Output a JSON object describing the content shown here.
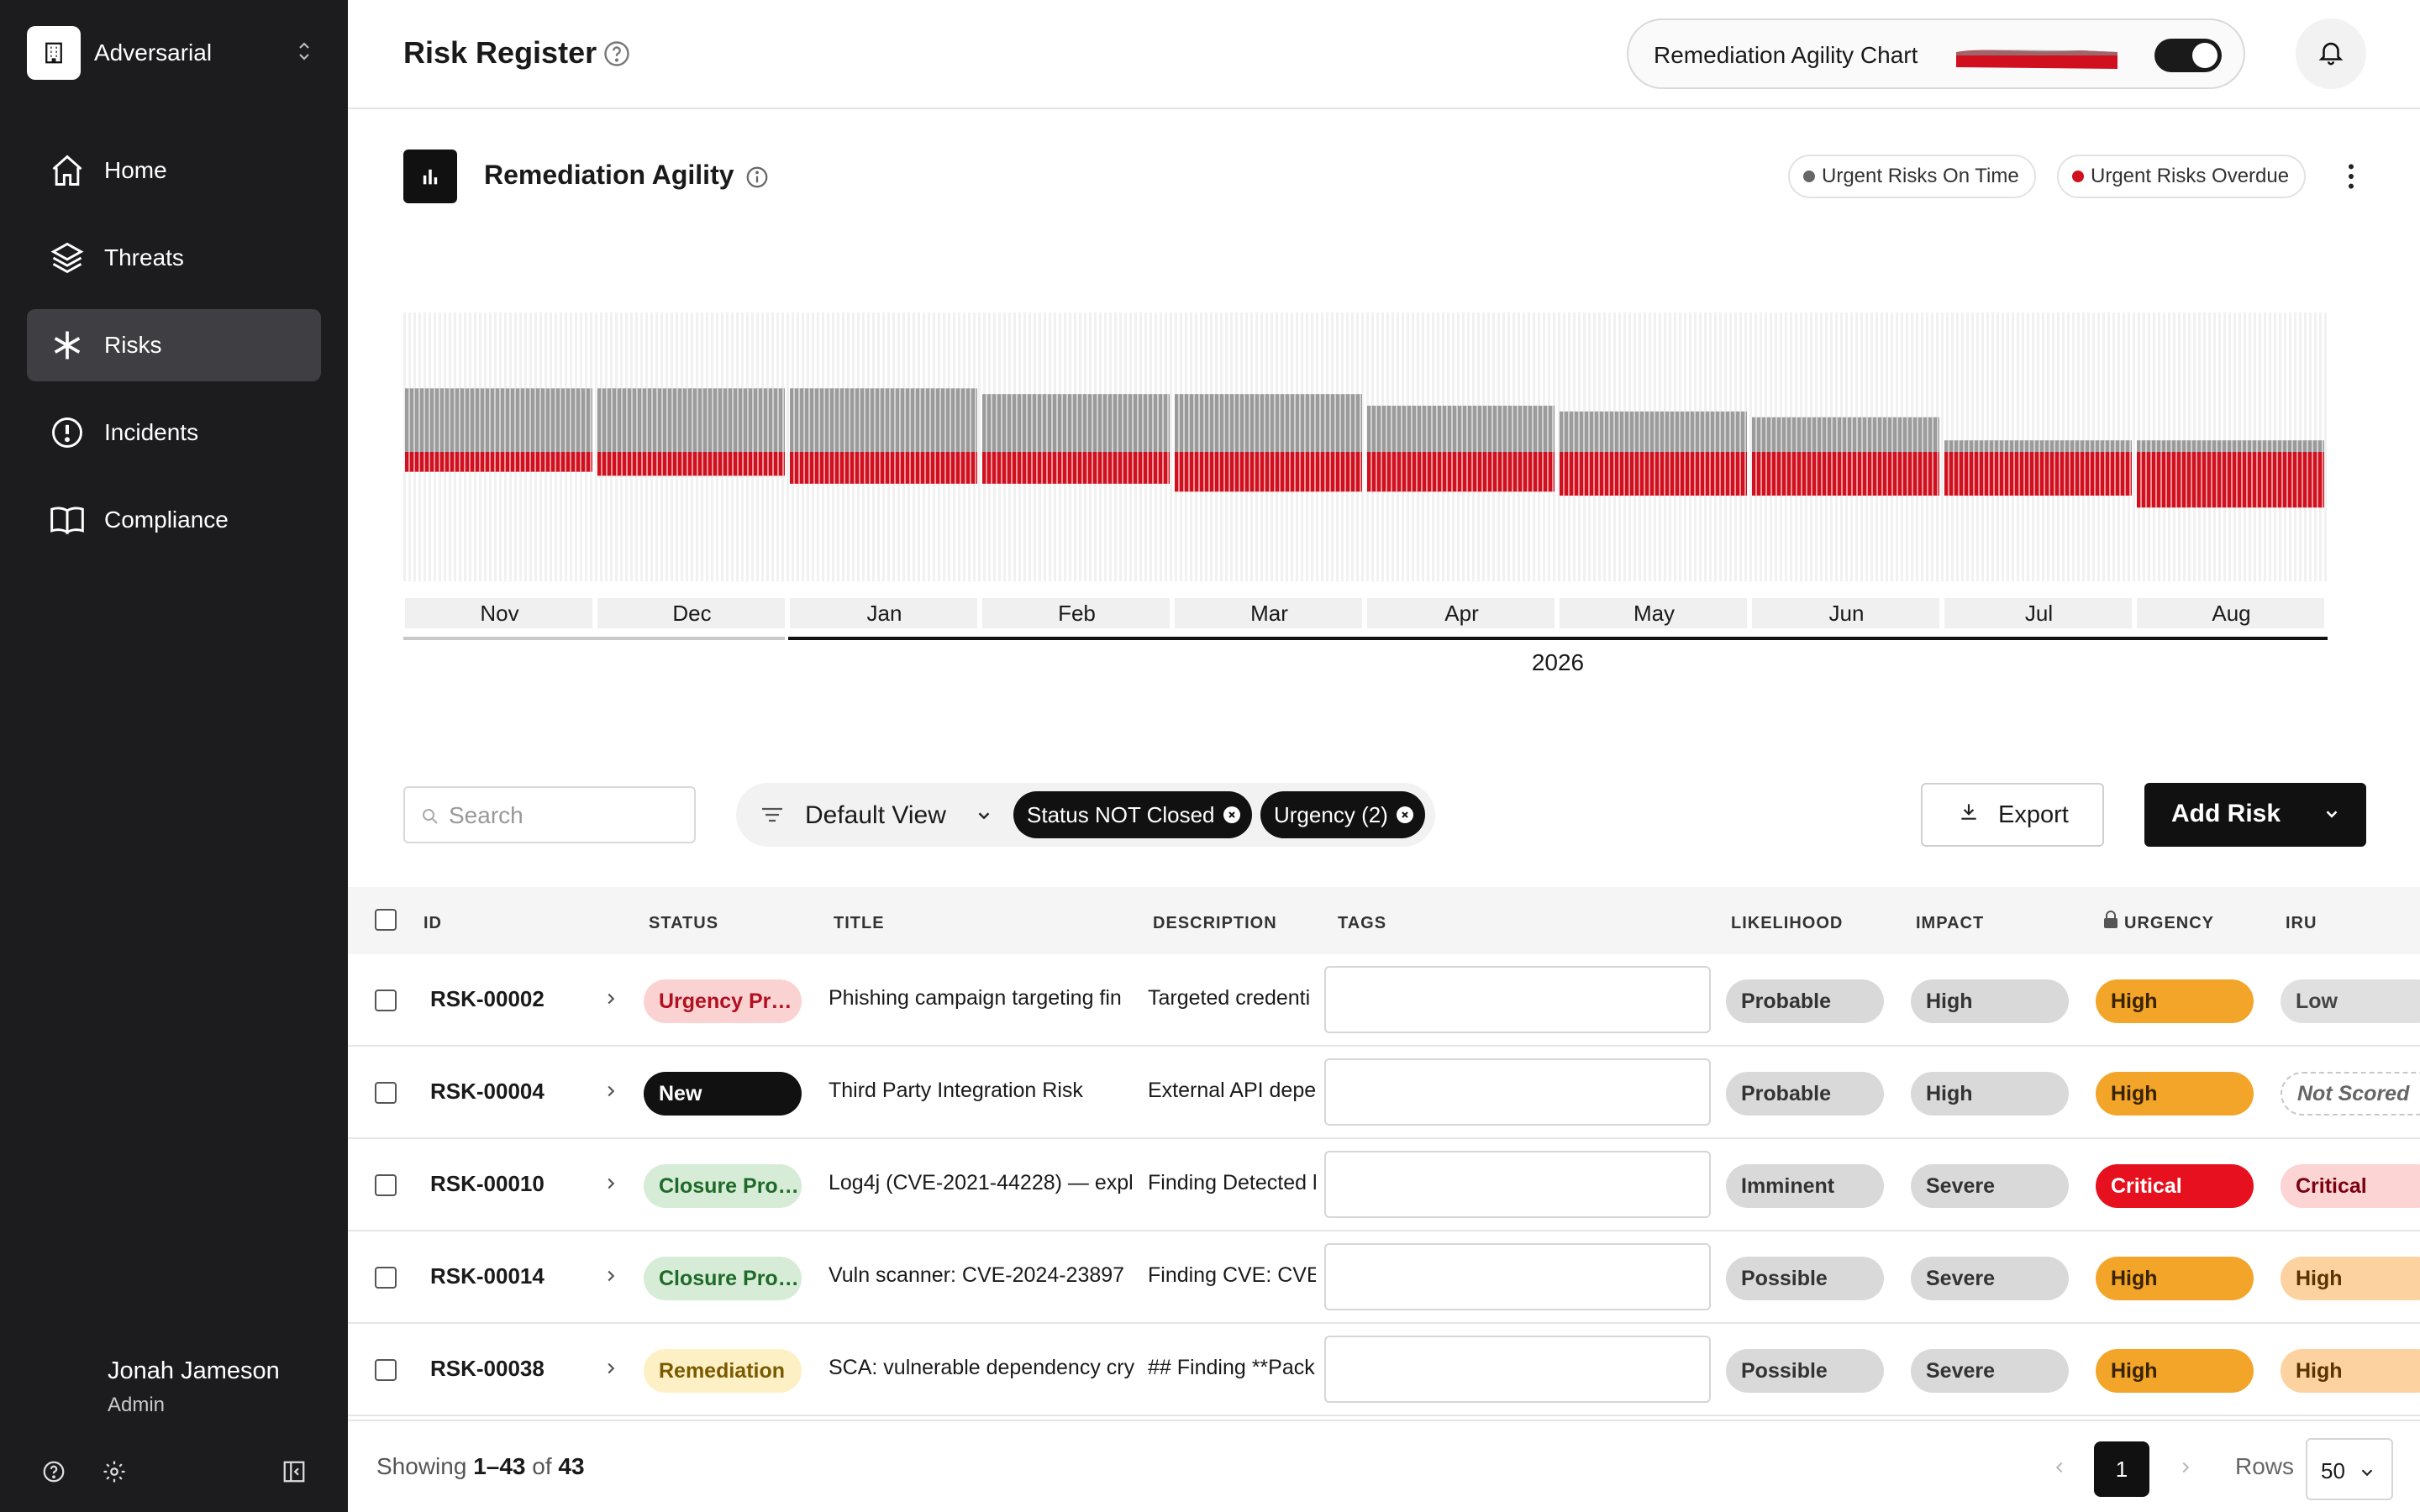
{
  "sidebar": {
    "org_name": "Adversarial",
    "items": [
      {
        "label": "Home",
        "icon": "home-icon"
      },
      {
        "label": "Threats",
        "icon": "layers-icon"
      },
      {
        "label": "Risks",
        "icon": "asterisk-icon",
        "active": true
      },
      {
        "label": "Incidents",
        "icon": "alert-circle-icon"
      },
      {
        "label": "Compliance",
        "icon": "book-icon"
      }
    ],
    "user": {
      "name": "Jonah Jameson",
      "role": "Admin"
    }
  },
  "header": {
    "title": "Risk Register",
    "toggle_label": "Remediation Agility Chart",
    "toggle_on": true
  },
  "chart_section": {
    "title": "Remediation Agility",
    "legend": [
      {
        "label": "Urgent Risks On Time",
        "color": "#666666"
      },
      {
        "label": "Urgent Risks Overdue",
        "color": "#d0101e"
      }
    ]
  },
  "chart_data": {
    "type": "bar",
    "months": [
      "Nov",
      "Dec",
      "Jan",
      "Feb",
      "Mar",
      "Apr",
      "May",
      "Jun",
      "Jul",
      "Aug"
    ],
    "year_label": "2026",
    "series": [
      {
        "name": "Urgent Risks On Time",
        "values": [
          11,
          11,
          11,
          10,
          10,
          8,
          7,
          6,
          2,
          2
        ]
      },
      {
        "name": "Urgent Risks Overdue",
        "values": [
          5,
          6,
          8,
          8,
          10,
          10,
          11,
          11,
          11,
          14
        ]
      }
    ]
  },
  "toolbar": {
    "search_placeholder": "Search",
    "view_label": "Default View",
    "chips": [
      {
        "prefix": "Status",
        "value": "NOT Closed"
      },
      {
        "prefix": "Urgency",
        "value": "(2)"
      }
    ],
    "export_label": "Export",
    "add_label": "Add Risk"
  },
  "table": {
    "columns": {
      "id": "ID",
      "status": "STATUS",
      "title": "TITLE",
      "description": "DESCRIPTION",
      "tags": "TAGS",
      "likelihood": "LIKELIHOOD",
      "impact": "IMPACT",
      "urgency": "URGENCY",
      "iru": "IRU"
    },
    "rows": [
      {
        "id": "RSK-00002",
        "status": "Urgency Pr…",
        "status_kind": "urgency",
        "title": "Phishing campaign targeting fin",
        "description": "Targeted credenti",
        "likelihood": "Probable",
        "impact": "High",
        "urgency": "High",
        "iru": "Low",
        "iru_kind": "low"
      },
      {
        "id": "RSK-00004",
        "status": "New",
        "status_kind": "new",
        "title": "Third Party Integration Risk",
        "description": "External API depe",
        "likelihood": "Probable",
        "impact": "High",
        "urgency": "High",
        "iru": "Not Scored",
        "iru_kind": "none"
      },
      {
        "id": "RSK-00010",
        "status": "Closure Pro…",
        "status_kind": "closure",
        "title": "Log4j (CVE-2021-44228) — expl",
        "description": "Finding Detected l",
        "likelihood": "Imminent",
        "impact": "Severe",
        "urgency": "Critical",
        "iru": "Critical",
        "iru_kind": "critical"
      },
      {
        "id": "RSK-00014",
        "status": "Closure Pro…",
        "status_kind": "closure",
        "title": "Vuln scanner: CVE-2024-23897",
        "description": "Finding CVE: CVE-",
        "likelihood": "Possible",
        "impact": "Severe",
        "urgency": "High",
        "iru": "High",
        "iru_kind": "high"
      },
      {
        "id": "RSK-00038",
        "status": "Remediation",
        "status_kind": "remediation",
        "title": "SCA: vulnerable dependency cry",
        "description": "## Finding **Pack",
        "likelihood": "Possible",
        "impact": "Severe",
        "urgency": "High",
        "iru": "High",
        "iru_kind": "high"
      }
    ]
  },
  "footer": {
    "showing_prefix": "Showing",
    "range": "1–43",
    "of": "of",
    "total": "43",
    "current_page": "1",
    "rows_label": "Rows",
    "rows_value": "50"
  }
}
